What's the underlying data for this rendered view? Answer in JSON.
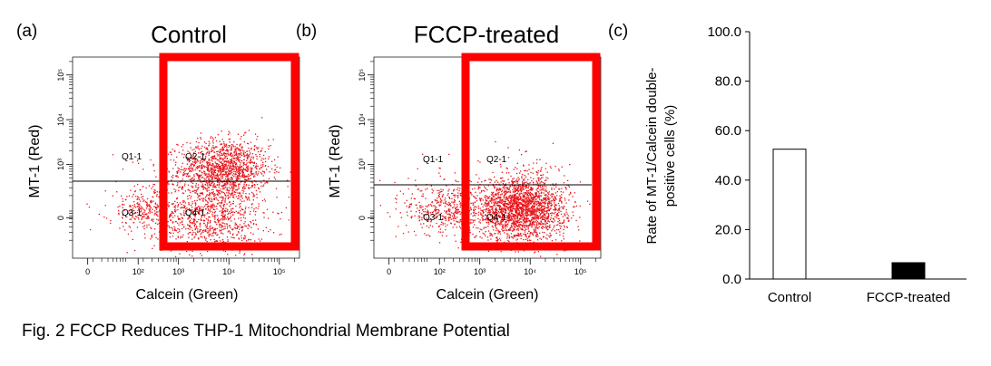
{
  "figure": {
    "caption": "Fig. 2 FCCP Reduces THP-1 Mitochondrial Membrane Potential"
  },
  "colors": {
    "dots": "#e8141a",
    "gate": "#ff0000",
    "axis": "#000000",
    "bar_fill_control": "#ffffff",
    "bar_fill_fccp": "#000000"
  },
  "chart_data": [
    {
      "type": "scatter",
      "panel_label": "(a)",
      "title": "Control",
      "xlabel": "Calcein (Green)",
      "ylabel": "MT-1 (Red)",
      "x_ticks": [
        "0",
        "10²",
        "10³",
        "10⁴",
        "10⁵"
      ],
      "y_ticks": [
        "0",
        "10³",
        "10⁴",
        "10⁵"
      ],
      "quadrants": [
        "Q1-1",
        "Q2-1",
        "Q3-1",
        "Q4-1"
      ],
      "clusters": [
        {
          "quadrant": "Q2-1",
          "x_log": 3.9,
          "y_log": 2.9,
          "spread": 0.45,
          "n": 1400
        },
        {
          "quadrant": "Q4-1",
          "x_log": 3.6,
          "y_log": 1.8,
          "spread": 0.55,
          "n": 900
        },
        {
          "quadrant": "Q3-1",
          "x_log": 2.3,
          "y_log": 2.0,
          "spread": 0.35,
          "n": 260
        },
        {
          "quadrant": "Q1-1",
          "x_log": 2.5,
          "y_log": 2.7,
          "spread": 0.4,
          "n": 30
        }
      ]
    },
    {
      "type": "scatter",
      "panel_label": "(b)",
      "title": "FCCP-treated",
      "xlabel": "Calcein (Green)",
      "ylabel": "MT-1 (Red)",
      "x_ticks": [
        "0",
        "10²",
        "10³",
        "10⁴",
        "10⁵"
      ],
      "y_ticks": [
        "0",
        "10³",
        "10⁴",
        "10⁵"
      ],
      "quadrants": [
        "Q1-1",
        "Q2-1",
        "Q3-1",
        "Q4-1"
      ],
      "clusters": [
        {
          "quadrant": "Q4-1",
          "x_log": 3.8,
          "y_log": 2.0,
          "spread": 0.45,
          "n": 2200
        },
        {
          "quadrant": "Q3-1",
          "x_log": 2.3,
          "y_log": 2.0,
          "spread": 0.4,
          "n": 420
        },
        {
          "quadrant": "Q2-1",
          "x_log": 3.9,
          "y_log": 2.7,
          "spread": 0.45,
          "n": 90
        },
        {
          "quadrant": "Q1-1",
          "x_log": 2.5,
          "y_log": 2.8,
          "spread": 0.4,
          "n": 25
        }
      ]
    },
    {
      "type": "bar",
      "panel_label": "(c)",
      "categories": [
        "Control",
        "FCCP-treated"
      ],
      "values": [
        52.5,
        6.6
      ],
      "ylabel_line1": "Rate of MT-1/Calcein double-",
      "ylabel_line2": "positive cells (%)",
      "ylim": [
        0,
        100
      ],
      "y_ticks": [
        "0.0",
        "20.0",
        "40.0",
        "60.0",
        "80.0",
        "100.0"
      ]
    }
  ]
}
